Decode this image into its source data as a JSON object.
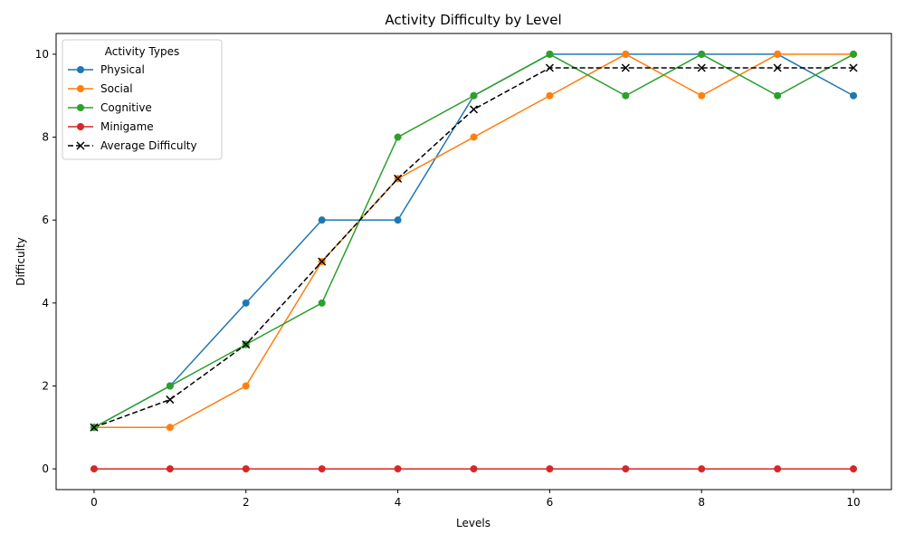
{
  "chart_data": {
    "type": "line",
    "title": "Activity Difficulty by Level",
    "xlabel": "Levels",
    "ylabel": "Difficulty",
    "xlim": [
      -0.5,
      10.5
    ],
    "ylim": [
      -0.5,
      10.5
    ],
    "xticks": [
      0,
      2,
      4,
      6,
      8,
      10
    ],
    "yticks": [
      0,
      2,
      4,
      6,
      8,
      10
    ],
    "legend": {
      "title": "Activity Types",
      "placement": "top-left"
    },
    "grid": false,
    "x": [
      0,
      1,
      2,
      3,
      4,
      5,
      6,
      7,
      8,
      9,
      10
    ],
    "series": [
      {
        "name": "Physical",
        "color": "#1f77b4",
        "marker": "circle",
        "dash": "solid",
        "values": [
          1,
          2,
          4,
          6,
          6,
          9,
          10,
          10,
          10,
          10,
          9
        ]
      },
      {
        "name": "Social",
        "color": "#ff7f0e",
        "marker": "circle",
        "dash": "solid",
        "values": [
          1,
          1,
          2,
          5,
          7,
          8,
          9,
          10,
          9,
          10,
          10
        ]
      },
      {
        "name": "Cognitive",
        "color": "#2ca02c",
        "marker": "circle",
        "dash": "solid",
        "values": [
          1,
          2,
          3,
          4,
          8,
          9,
          10,
          9,
          10,
          9,
          10
        ]
      },
      {
        "name": "Minigame",
        "color": "#d62728",
        "marker": "circle",
        "dash": "solid",
        "values": [
          0,
          0,
          0,
          0,
          0,
          0,
          0,
          0,
          0,
          0,
          0
        ]
      },
      {
        "name": "Average Difficulty",
        "color": "#000000",
        "marker": "x",
        "dash": "dashed",
        "values": [
          1,
          1.67,
          3,
          5,
          7,
          8.67,
          9.67,
          9.67,
          9.67,
          9.67,
          9.67
        ]
      }
    ]
  }
}
